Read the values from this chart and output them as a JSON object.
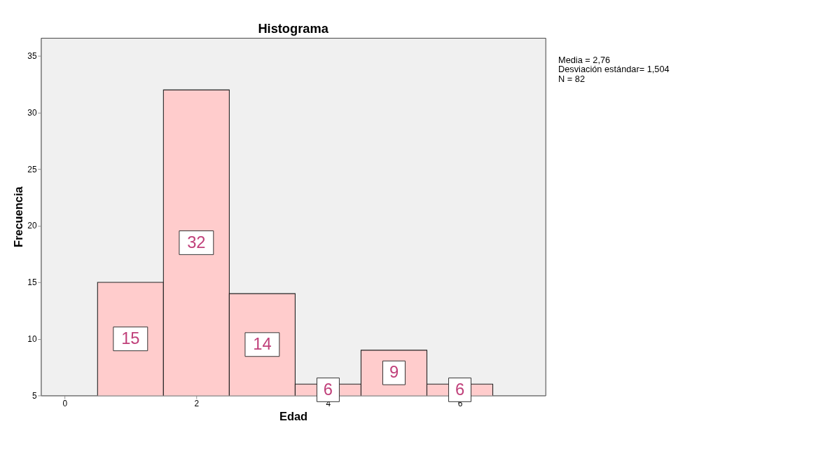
{
  "chart_data": {
    "type": "histogram",
    "title": "Histograma",
    "xlabel": "Edad",
    "ylabel": "Frecuencia",
    "bins": [
      0.5,
      1.5,
      2.5,
      3.5,
      4.5,
      5.5,
      6.5
    ],
    "values": [
      15,
      32,
      14,
      6,
      9,
      6
    ],
    "color": "#ffcccc",
    "xlim": [
      -0.36,
      7.3
    ],
    "xticks": [
      0,
      2,
      4,
      6
    ],
    "ylim": [
      5,
      36.6
    ],
    "yticks": [
      5,
      10,
      15,
      20,
      25,
      30,
      35
    ],
    "data_labels": true,
    "grid": false,
    "annotations": [
      "Media = 2,76",
      "Desviación estándar= 1,504",
      "N = 82"
    ]
  }
}
